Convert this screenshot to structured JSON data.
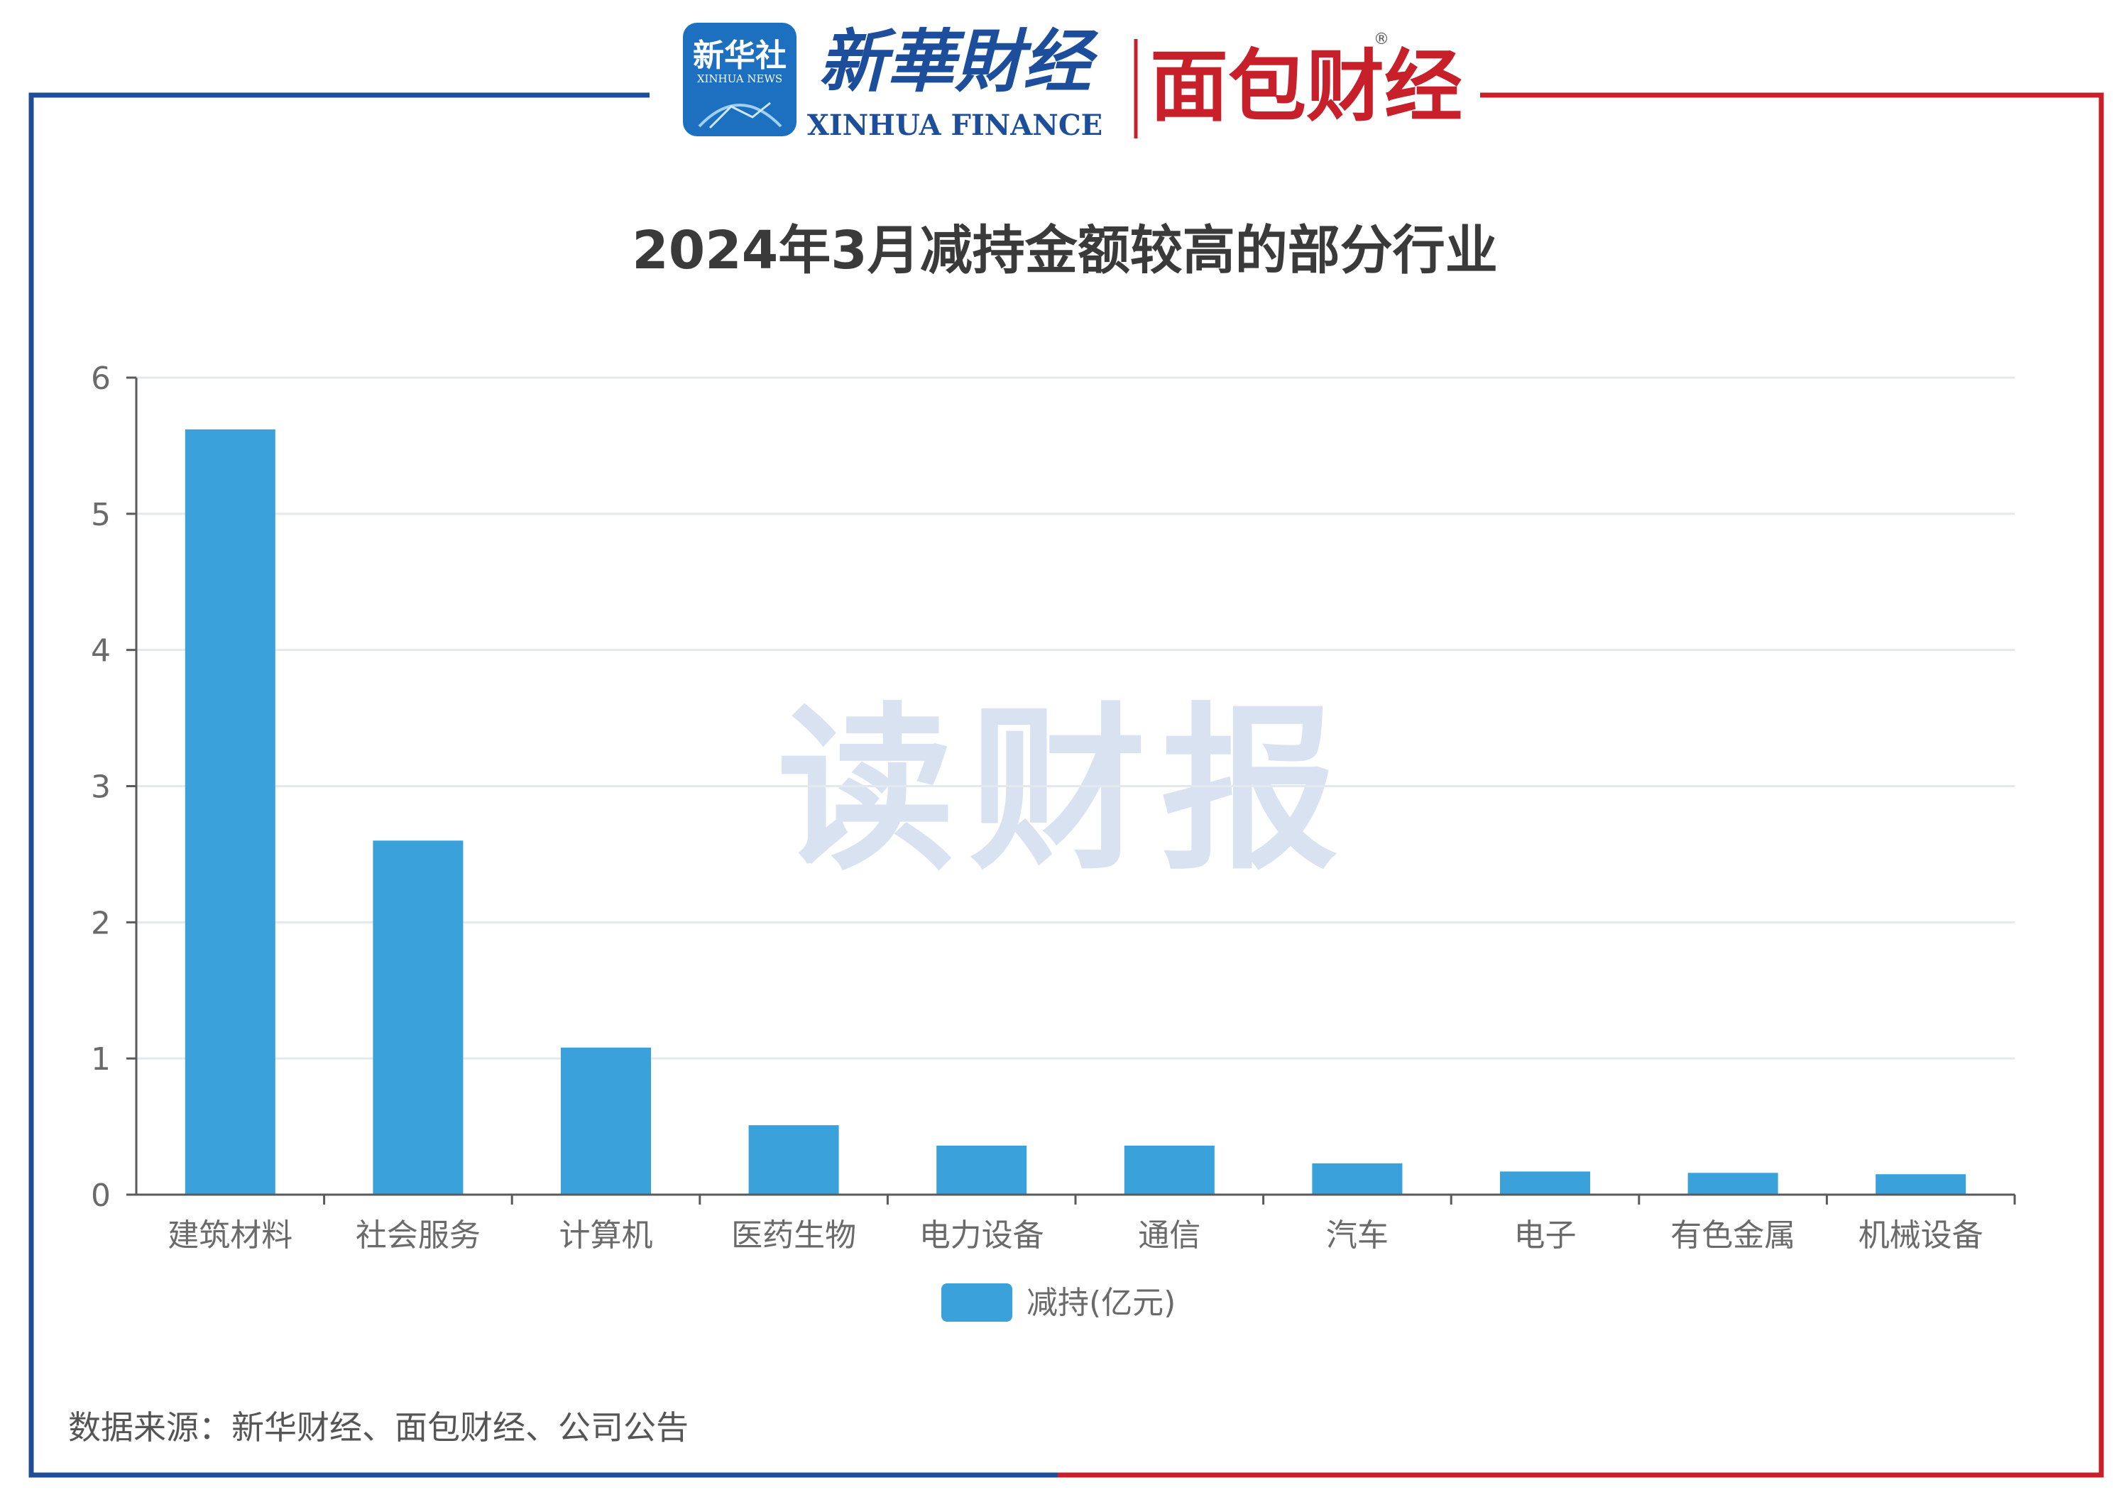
{
  "header": {
    "xinhua_badge": "新华社",
    "xinhua_badge_sub": "XINHUA NEWS",
    "xinhua_finance_cn": "新華財经",
    "xinhua_finance_en": "XINHUA FINANCE",
    "mianbao": "面包财经",
    "registered_mark": "®"
  },
  "watermark": "读财报",
  "source_note": "数据来源：新华财经、面包财经、公司公告",
  "colors": {
    "bar": "#3aa1da",
    "frame_left": "#1f4e96",
    "frame_right": "#c8202a",
    "grid": "#e4e8ef"
  },
  "chart_data": {
    "type": "bar",
    "title": "2024年3月减持金额较高的部分行业",
    "categories": [
      "建筑材料",
      "社会服务",
      "计算机",
      "医药生物",
      "电力设备",
      "通信",
      "汽车",
      "电子",
      "有色金属",
      "机械设备"
    ],
    "series": [
      {
        "name": "减持(亿元)",
        "values": [
          5.62,
          2.6,
          1.08,
          0.51,
          0.36,
          0.36,
          0.23,
          0.17,
          0.16,
          0.15
        ]
      }
    ],
    "yticks": [
      "0",
      "1",
      "2",
      "3",
      "4",
      "5",
      "6"
    ],
    "ylim": [
      0,
      6
    ],
    "grid": true,
    "legend": "bottom-center"
  }
}
